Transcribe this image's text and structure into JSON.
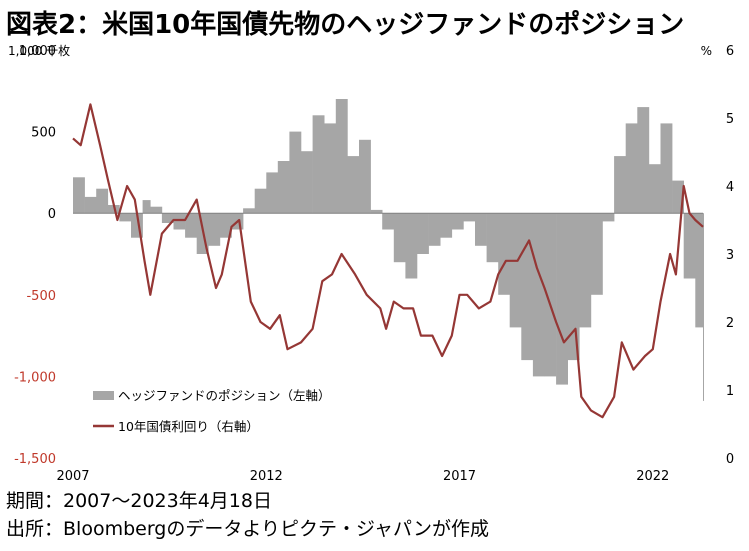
{
  "title": "図表2：米国10年国債先物のヘッジファンドのポジション",
  "footer": {
    "period": "期間：2007～2023年4月18日",
    "source": "出所：Bloombergのデータよりピクテ・ジャパンが作成"
  },
  "colors": {
    "bars": "#a6a6a6",
    "line": "#953735",
    "negative_tick": "#c0392b"
  },
  "chart_data": {
    "type": "bar+line",
    "left_unit": "1,000 千枚",
    "right_unit": "%",
    "left_axis": {
      "ylim": [
        -1500,
        1000
      ],
      "ticks": [
        "1,000",
        "500",
        "0",
        "-500",
        "-1,000",
        "-1,500"
      ],
      "tick_values": [
        1000,
        500,
        0,
        -500,
        -1000,
        -1500
      ]
    },
    "right_axis": {
      "ylim": [
        0,
        6
      ],
      "ticks": [
        "6",
        "5",
        "4",
        "3",
        "2",
        "1",
        "0"
      ],
      "tick_values": [
        6,
        5,
        4,
        3,
        2,
        1,
        0
      ]
    },
    "x_axis": {
      "range": [
        2007.0,
        2023.3
      ],
      "ticks": [
        "2007",
        "2012",
        "2017",
        "2022"
      ],
      "tick_values": [
        2007,
        2012,
        2017,
        2022
      ]
    },
    "series": [
      {
        "name": "ヘッジファンドのポジション（左軸）",
        "kind": "area-bars",
        "axis": "left",
        "x": [
          2007.0,
          2007.3,
          2007.6,
          2007.9,
          2008.2,
          2008.5,
          2008.8,
          2009.0,
          2009.3,
          2009.6,
          2009.9,
          2010.2,
          2010.5,
          2010.8,
          2011.1,
          2011.4,
          2011.7,
          2012.0,
          2012.3,
          2012.6,
          2012.9,
          2013.2,
          2013.5,
          2013.8,
          2014.1,
          2014.4,
          2014.7,
          2015.0,
          2015.3,
          2015.6,
          2015.9,
          2016.2,
          2016.5,
          2016.8,
          2017.1,
          2017.4,
          2017.7,
          2018.0,
          2018.3,
          2018.6,
          2018.9,
          2019.2,
          2019.5,
          2019.8,
          2020.1,
          2020.4,
          2020.7,
          2021.0,
          2021.3,
          2021.6,
          2021.9,
          2022.2,
          2022.5,
          2022.8,
          2023.1,
          2023.3
        ],
        "values": [
          220,
          100,
          150,
          50,
          -50,
          -150,
          80,
          40,
          -60,
          -100,
          -150,
          -250,
          -200,
          -150,
          -100,
          30,
          150,
          250,
          320,
          500,
          380,
          600,
          550,
          700,
          350,
          450,
          20,
          -100,
          -300,
          -400,
          -250,
          -200,
          -150,
          -100,
          -50,
          -200,
          -300,
          -500,
          -700,
          -900,
          -1000,
          -1000,
          -1050,
          -900,
          -700,
          -500,
          -50,
          350,
          550,
          650,
          300,
          550,
          200,
          -400,
          -700,
          -1150
        ]
      },
      {
        "name": "10年国債利回り（右軸）",
        "kind": "line",
        "axis": "right",
        "x": [
          2007.0,
          2007.2,
          2007.45,
          2007.7,
          2007.9,
          2008.15,
          2008.4,
          2008.6,
          2008.85,
          2009.0,
          2009.3,
          2009.6,
          2009.9,
          2010.2,
          2010.45,
          2010.7,
          2010.85,
          2011.1,
          2011.3,
          2011.6,
          2011.85,
          2012.1,
          2012.35,
          2012.55,
          2012.9,
          2013.2,
          2013.45,
          2013.7,
          2013.95,
          2014.3,
          2014.6,
          2014.95,
          2015.1,
          2015.3,
          2015.55,
          2015.8,
          2016.0,
          2016.3,
          2016.55,
          2016.8,
          2017.0,
          2017.2,
          2017.5,
          2017.8,
          2018.0,
          2018.2,
          2018.5,
          2018.8,
          2019.0,
          2019.2,
          2019.5,
          2019.7,
          2020.0,
          2020.15,
          2020.4,
          2020.7,
          2021.0,
          2021.2,
          2021.5,
          2021.8,
          2022.0,
          2022.2,
          2022.45,
          2022.6,
          2022.8,
          2022.95,
          2023.1,
          2023.3
        ],
        "values": [
          4.7,
          4.6,
          5.2,
          4.6,
          4.1,
          3.5,
          4.0,
          3.8,
          2.9,
          2.4,
          3.3,
          3.5,
          3.5,
          3.8,
          3.1,
          2.5,
          2.7,
          3.4,
          3.5,
          2.3,
          2.0,
          1.9,
          2.1,
          1.6,
          1.7,
          1.9,
          2.6,
          2.7,
          3.0,
          2.7,
          2.4,
          2.2,
          1.9,
          2.3,
          2.2,
          2.2,
          1.8,
          1.8,
          1.5,
          1.8,
          2.4,
          2.4,
          2.2,
          2.3,
          2.7,
          2.9,
          2.9,
          3.2,
          2.8,
          2.5,
          2.0,
          1.7,
          1.9,
          0.9,
          0.7,
          0.6,
          0.9,
          1.7,
          1.3,
          1.5,
          1.6,
          2.3,
          3.0,
          2.7,
          4.0,
          3.6,
          3.5,
          3.4
        ]
      }
    ]
  }
}
